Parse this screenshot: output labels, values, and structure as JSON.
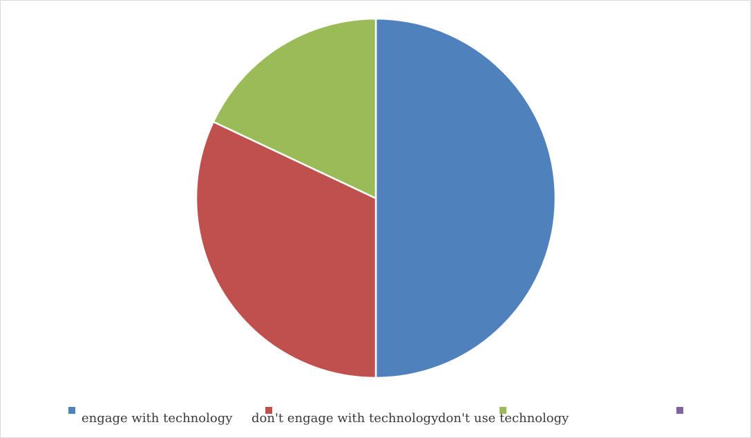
{
  "chart_data": {
    "type": "pie",
    "title": "",
    "categories": [
      "engage with technology",
      "don't engage with technology",
      "don't use technology",
      ""
    ],
    "values": [
      50,
      32,
      18,
      0
    ],
    "colors": [
      "#4f81bd",
      "#c0504d",
      "#9bbb59",
      "#8064a2"
    ],
    "start_angle_deg": 0,
    "direction": "clockwise",
    "legend": "bottom"
  }
}
